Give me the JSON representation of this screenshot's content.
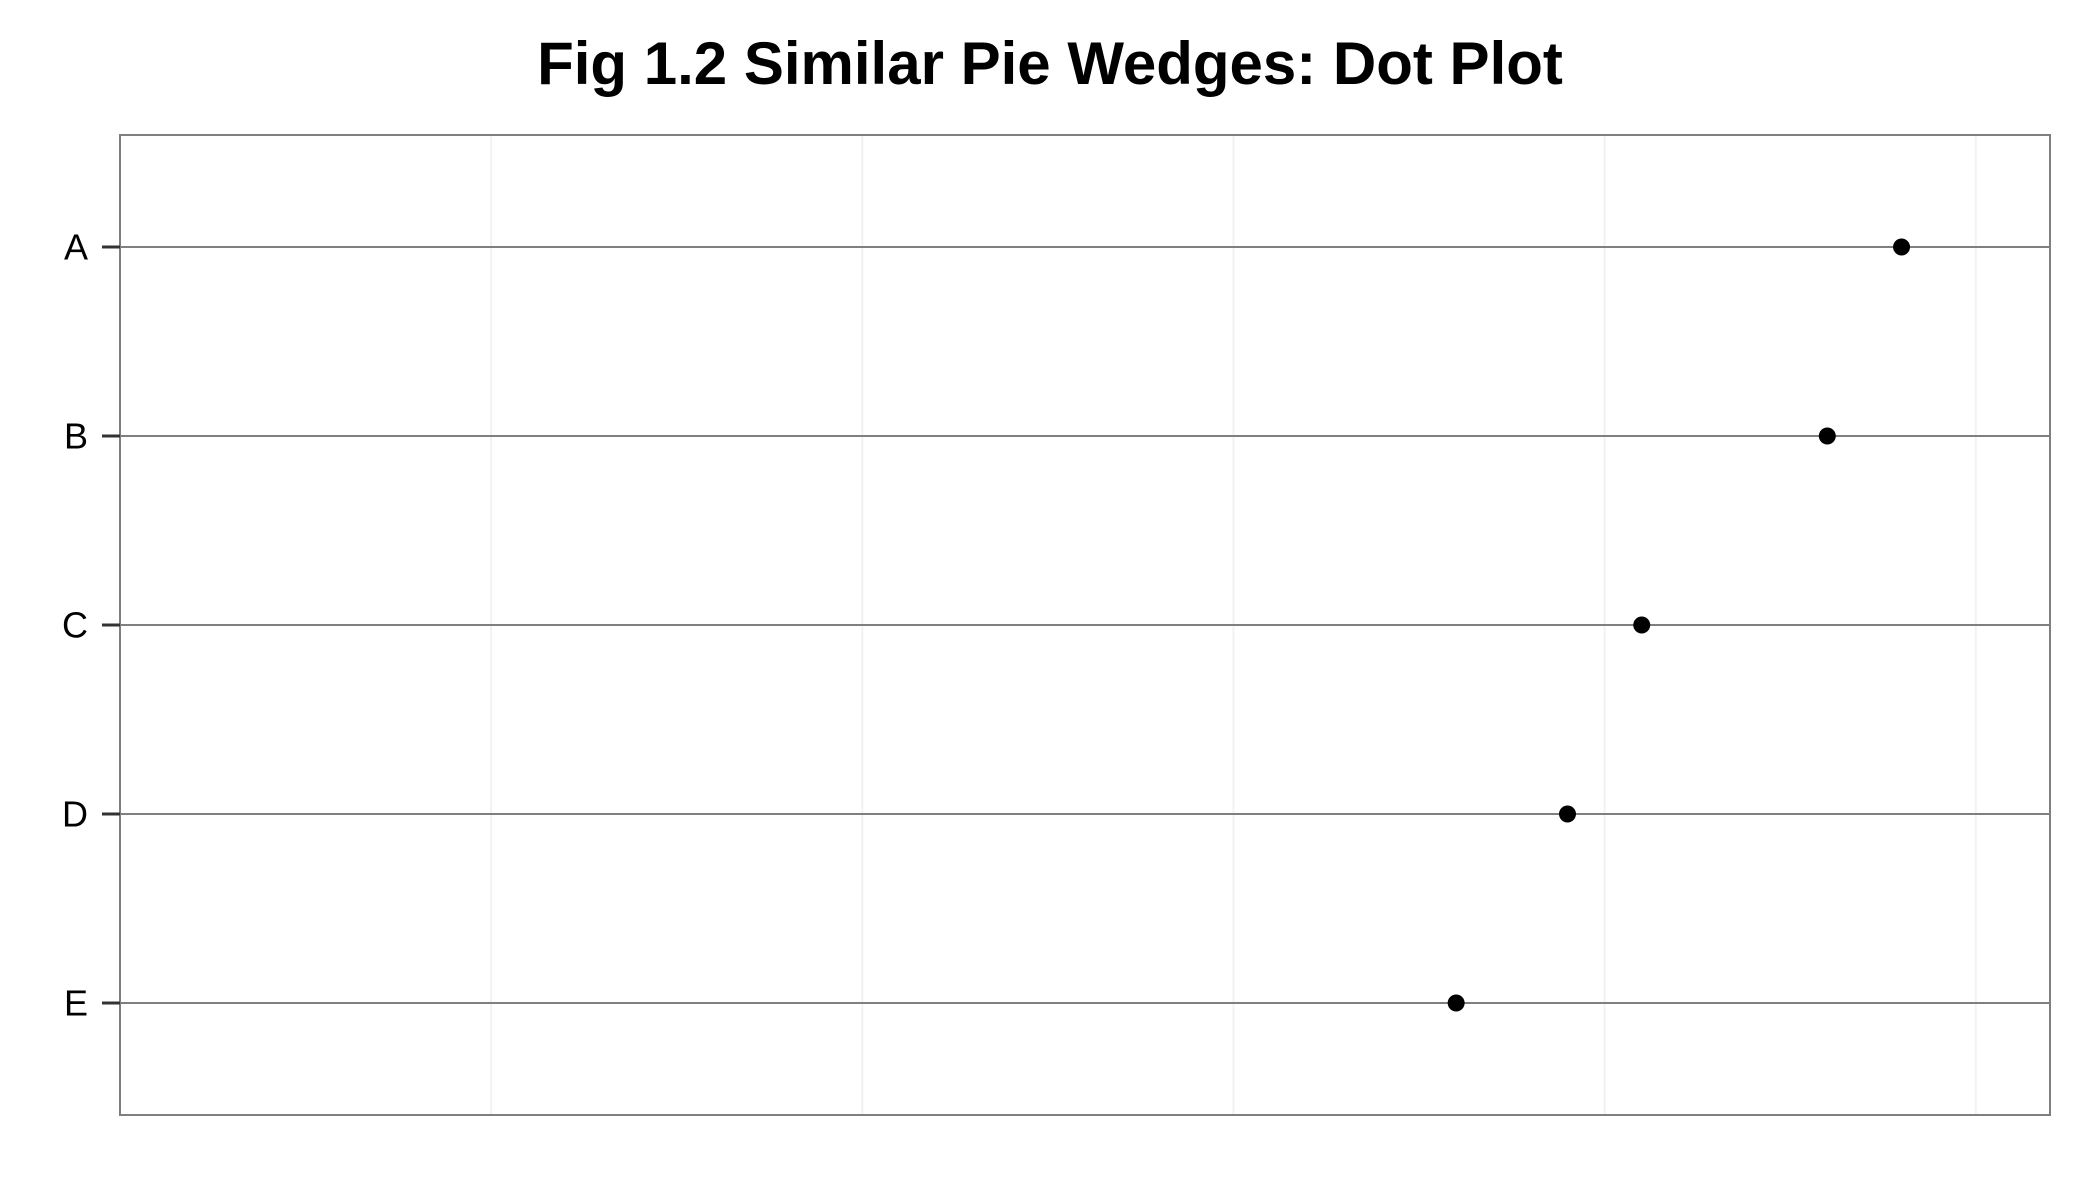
{
  "chart_data": {
    "type": "scatter",
    "title": "Fig 1.2 Similar Pie Wedges: Dot Plot",
    "xlabel": "",
    "ylabel": "",
    "categories": [
      "A",
      "B",
      "C",
      "D",
      "E"
    ],
    "values": [
      24,
      23,
      20.5,
      19.5,
      18
    ],
    "xlim": [
      0,
      26
    ],
    "x_grid": [
      5,
      10,
      15,
      20,
      25
    ],
    "x_tick_labels_shown": false,
    "grid": true,
    "colors": {
      "point": "#000000",
      "panel_border": "#7f7f7f",
      "row_line": "#7f7f7f",
      "minor_grid": "#f2f2f2"
    }
  }
}
